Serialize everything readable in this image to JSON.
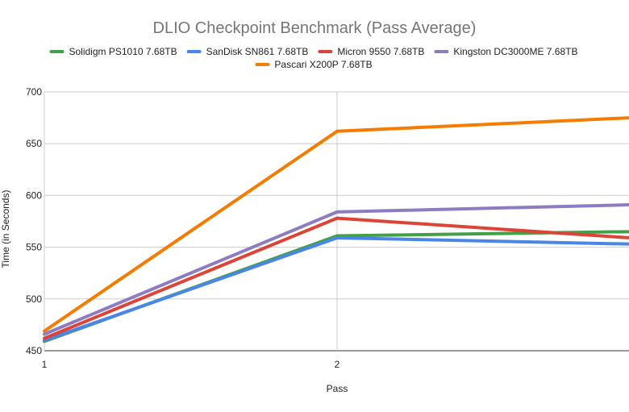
{
  "chart_data": {
    "type": "line",
    "title": "DLIO Checkpoint Benchmark (Pass Average)",
    "xlabel": "Pass",
    "ylabel": "Time (in Seconds)",
    "x": [
      1,
      2,
      3
    ],
    "xticks": [
      "1",
      "2"
    ],
    "ylim": [
      450,
      700
    ],
    "yticks": [
      450,
      500,
      550,
      600,
      650,
      700
    ],
    "grid": true,
    "legend_position": "top",
    "series": [
      {
        "name": "Solidigm PS1010 7.68TB",
        "color": "#43a047",
        "values": [
          459,
          561,
          565
        ]
      },
      {
        "name": "SanDisk SN861 7.68TB",
        "color": "#4a86e8",
        "values": [
          460,
          559,
          553
        ]
      },
      {
        "name": "Micron 9550 7.68TB",
        "color": "#db4437",
        "values": [
          462,
          578,
          559
        ]
      },
      {
        "name": "Kingston DC3000ME 7.68TB",
        "color": "#8e7cc3",
        "values": [
          466,
          584,
          591
        ]
      },
      {
        "name": "Pascari X200P 7.68TB",
        "color": "#f57c00",
        "values": [
          469,
          662,
          675
        ]
      }
    ]
  }
}
